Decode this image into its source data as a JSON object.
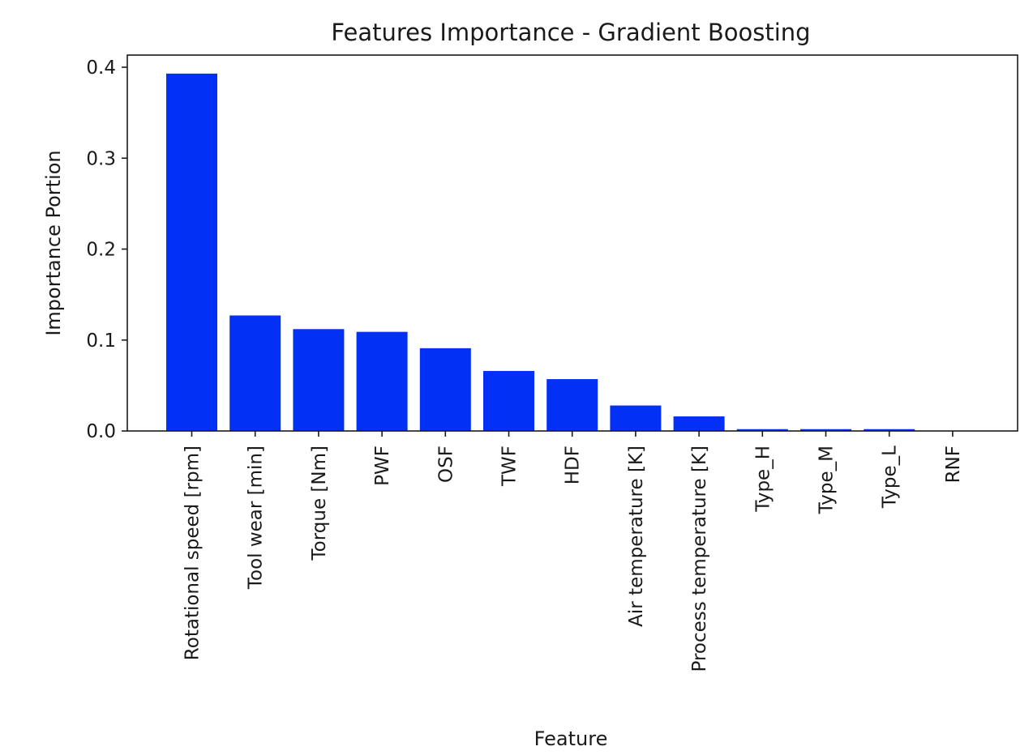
{
  "chart_data": {
    "type": "bar",
    "title": "Features Importance - Gradient Boosting",
    "xlabel": "Feature",
    "ylabel": "Importance Portion",
    "categories": [
      "Rotational speed [rpm]",
      "Tool wear [min]",
      "Torque [Nm]",
      "PWF",
      "OSF",
      "TWF",
      "HDF",
      "Air temperature [K]",
      "Process temperature [K]",
      "Type_H",
      "Type_M",
      "Type_L",
      "RNF"
    ],
    "values": [
      0.393,
      0.127,
      0.112,
      0.109,
      0.091,
      0.066,
      0.057,
      0.028,
      0.016,
      0.002,
      0.002,
      0.002,
      0.0
    ],
    "yticks": [
      "0.0",
      "0.1",
      "0.2",
      "0.3",
      "0.4"
    ],
    "ylim": [
      0.0,
      0.4125
    ],
    "bar_color": "#0330f5",
    "grid": false,
    "legend": false
  }
}
